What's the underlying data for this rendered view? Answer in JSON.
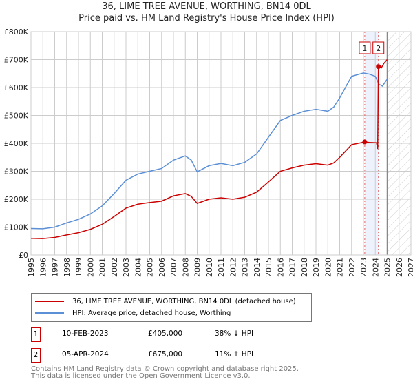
{
  "chart_data": {
    "type": "line",
    "title": "36, LIME TREE AVENUE, WORTHING, BN14 0DL",
    "subtitle": "Price paid vs. HM Land Registry's House Price Index (HPI)",
    "xlim": [
      1995,
      2027
    ],
    "ylim": [
      0,
      800000
    ],
    "x_ticks": [
      "1995",
      "1996",
      "1997",
      "1998",
      "1999",
      "2000",
      "2001",
      "2002",
      "2003",
      "2004",
      "2005",
      "2006",
      "2007",
      "2008",
      "2009",
      "2010",
      "2011",
      "2012",
      "2013",
      "2014",
      "2015",
      "2016",
      "2017",
      "2018",
      "2019",
      "2020",
      "2021",
      "2022",
      "2023",
      "2024",
      "2025",
      "2026",
      "2027"
    ],
    "y_ticks": [
      {
        "v": 0,
        "l": "£0"
      },
      {
        "v": 100000,
        "l": "£100K"
      },
      {
        "v": 200000,
        "l": "£200K"
      },
      {
        "v": 300000,
        "l": "£300K"
      },
      {
        "v": 400000,
        "l": "£400K"
      },
      {
        "v": 500000,
        "l": "£500K"
      },
      {
        "v": 600000,
        "l": "£600K"
      },
      {
        "v": 700000,
        "l": "£700K"
      },
      {
        "v": 800000,
        "l": "£800K"
      }
    ],
    "grid": true,
    "series": [
      {
        "name": "36, LIME TREE AVENUE, WORTHING, BN14 0DL (detached house)",
        "color": "#cc0000",
        "points": [
          [
            1995,
            60000
          ],
          [
            1996,
            59000
          ],
          [
            1997,
            63000
          ],
          [
            1998,
            72000
          ],
          [
            1999,
            80000
          ],
          [
            2000,
            92000
          ],
          [
            2001,
            110000
          ],
          [
            2002,
            138000
          ],
          [
            2003,
            168000
          ],
          [
            2004,
            182000
          ],
          [
            2005,
            188000
          ],
          [
            2006,
            193000
          ],
          [
            2007,
            212000
          ],
          [
            2008,
            220000
          ],
          [
            2008.5,
            210000
          ],
          [
            2009,
            185000
          ],
          [
            2010,
            200000
          ],
          [
            2011,
            205000
          ],
          [
            2012,
            200000
          ],
          [
            2013,
            207000
          ],
          [
            2014,
            225000
          ],
          [
            2015,
            262000
          ],
          [
            2016,
            300000
          ],
          [
            2017,
            312000
          ],
          [
            2018,
            322000
          ],
          [
            2019,
            327000
          ],
          [
            2020,
            322000
          ],
          [
            2020.5,
            330000
          ],
          [
            2021,
            350000
          ],
          [
            2022,
            395000
          ],
          [
            2023.11,
            405000
          ],
          [
            2023.5,
            403000
          ],
          [
            2024.1,
            402000
          ],
          [
            2024.2,
            380000
          ],
          [
            2024.26,
            675000
          ],
          [
            2024.5,
            670000
          ],
          [
            2024.7,
            685000
          ],
          [
            2025,
            700000
          ]
        ]
      },
      {
        "name": "HPI: Average price, detached house, Worthing",
        "color": "#5b8fd6",
        "points": [
          [
            1995,
            95000
          ],
          [
            1996,
            94000
          ],
          [
            1997,
            100000
          ],
          [
            1998,
            115000
          ],
          [
            1999,
            128000
          ],
          [
            2000,
            147000
          ],
          [
            2001,
            176000
          ],
          [
            2002,
            220000
          ],
          [
            2003,
            268000
          ],
          [
            2004,
            290000
          ],
          [
            2005,
            300000
          ],
          [
            2006,
            310000
          ],
          [
            2007,
            340000
          ],
          [
            2008,
            355000
          ],
          [
            2008.5,
            340000
          ],
          [
            2009,
            298000
          ],
          [
            2010,
            320000
          ],
          [
            2011,
            328000
          ],
          [
            2012,
            320000
          ],
          [
            2013,
            332000
          ],
          [
            2014,
            362000
          ],
          [
            2015,
            422000
          ],
          [
            2016,
            482000
          ],
          [
            2017,
            500000
          ],
          [
            2018,
            515000
          ],
          [
            2019,
            522000
          ],
          [
            2020,
            515000
          ],
          [
            2020.5,
            530000
          ],
          [
            2021,
            563000
          ],
          [
            2022,
            640000
          ],
          [
            2023,
            652000
          ],
          [
            2023.5,
            648000
          ],
          [
            2024,
            640000
          ],
          [
            2024.3,
            612000
          ],
          [
            2024.6,
            605000
          ],
          [
            2025,
            630000
          ]
        ]
      }
    ],
    "sales": [
      {
        "n": "1",
        "x": 2023.11,
        "v": 405000
      },
      {
        "n": "2",
        "x": 2024.26,
        "v": 675000
      }
    ],
    "forecast_from": 2025
  },
  "legend": {
    "item1": "36, LIME TREE AVENUE, WORTHING, BN14 0DL (detached house)",
    "item2": "HPI: Average price, detached house, Worthing"
  },
  "table": [
    {
      "n": "1",
      "date": "10-FEB-2023",
      "price": "£405,000",
      "hpi": "38% ↓ HPI"
    },
    {
      "n": "2",
      "date": "05-APR-2024",
      "price": "£675,000",
      "hpi": "11% ↑ HPI"
    }
  ],
  "footer": {
    "line1": "Contains HM Land Registry data © Crown copyright and database right 2025.",
    "line2": "This data is licensed under the Open Government Licence v3.0."
  }
}
